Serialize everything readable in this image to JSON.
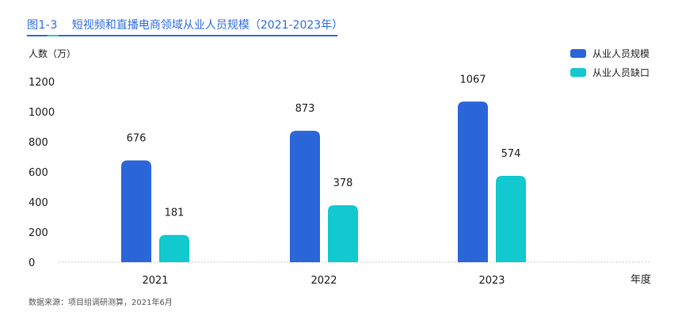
{
  "figure": {
    "label": "图1-3",
    "title": "短视频和直播电商领域从业人员规模（2021-2023年）"
  },
  "chart_data": {
    "type": "bar",
    "categories": [
      "2021",
      "2022",
      "2023"
    ],
    "series": [
      {
        "name": "从业人员规模",
        "values": [
          676,
          873,
          1067
        ],
        "color": "#2b66d9"
      },
      {
        "name": "从业人员缺口",
        "values": [
          181,
          378,
          574
        ],
        "color": "#12c9cf"
      }
    ],
    "ylabel": "人数（万）",
    "xlabel": "年度",
    "ylim": [
      0,
      1200
    ],
    "yticks": [
      0,
      200,
      400,
      600,
      800,
      1000,
      1200
    ],
    "grid": false,
    "legend_position": "top-right"
  },
  "source": "数据来源：项目组调研测算，2021年6月"
}
